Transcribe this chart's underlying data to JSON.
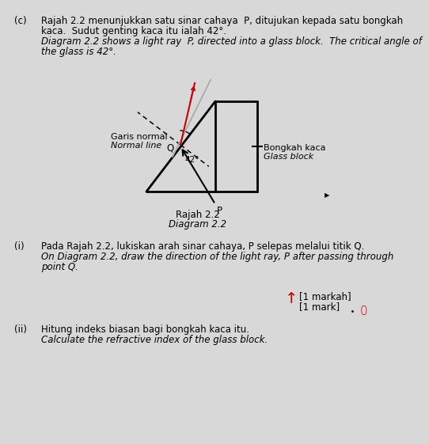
{
  "bg_color": "#d8d8d8",
  "title_c": "(c)",
  "text_line1_malay": "Rajah 2.2 menunjukkan satu sinar cahaya  P, ditujukan kepada satu bongkah",
  "text_line2_malay": "kaca.  Sudut genting kaca itu ialah 42°.",
  "text_line3_italic": "Diagram 2.2 shows a light ray  P, directed into a glass block.  The critical angle of",
  "text_line4_italic": "the glass is 42°.",
  "diagram_label1": "Rajah 2.2",
  "diagram_label2": "Diagram 2.2",
  "normal_line_label_malay": "Garis normal",
  "normal_line_label_eng": "Normal line",
  "glass_label_malay": "Bongkah kaca",
  "glass_label_eng": "Glass block",
  "angle_label": "42°",
  "point_Q": "Q",
  "point_P": "P",
  "section_i_num": "(i)",
  "section_i_malay": "Pada Rajah 2.2, lukiskan arah sinar cahaya, P selepas melalui titik Q.",
  "section_i_eng": "On Diagram 2.2, draw the direction of the light ray, P after passing through",
  "section_i_eng2": "point Q.",
  "mark_label1": "[1 markah]",
  "mark_label2": "[1 mark]",
  "section_ii_num": "(ii)",
  "section_ii_malay": "Hitung indeks biasan bagi bongkah kaca itu.",
  "section_ii_eng": "Calculate the refractive index of the glass block.",
  "red_mark": "↑",
  "red_letter": "0",
  "small_arrow": "▶"
}
